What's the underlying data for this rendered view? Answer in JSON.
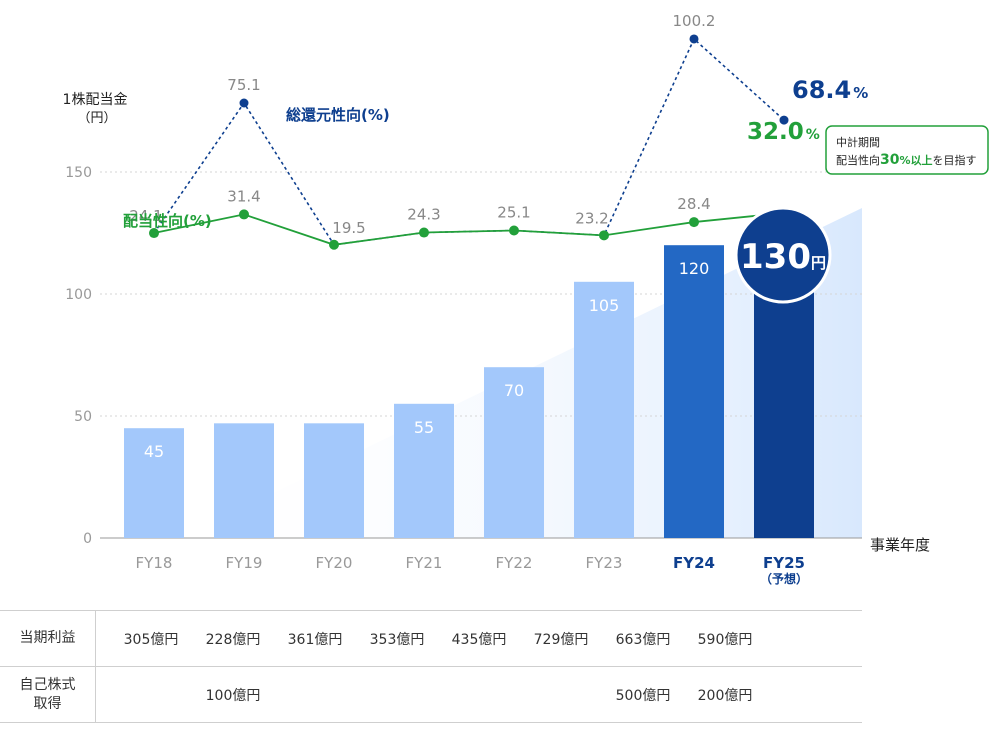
{
  "chart_data": {
    "type": "bar",
    "ylabel_line1": "1株配当金",
    "ylabel_line2": "（円）",
    "xlabel": "事業年度",
    "categories": [
      "FY18",
      "FY19",
      "FY20",
      "FY21",
      "FY22",
      "FY23",
      "FY24",
      "FY25"
    ],
    "forecast_note": "（予想）",
    "ylim": [
      0,
      150
    ],
    "yticks": [
      0,
      50,
      100,
      150
    ],
    "values": [
      45,
      47,
      47,
      55,
      70,
      105,
      120,
      130
    ],
    "value_labels": [
      "45",
      "",
      "",
      "55",
      "70",
      "105",
      "120",
      ""
    ],
    "highlight_value": "130",
    "highlight_unit": "円",
    "lines": [
      {
        "name": "総還元性向(%)",
        "values": [
          24.1,
          75.1,
          19.5,
          24.3,
          25.1,
          23.2,
          100.2,
          68.4
        ],
        "labels": [
          "",
          "75.1",
          "",
          "",
          "",
          "",
          "100.2",
          ""
        ],
        "last_label": "68.4",
        "last_unit": "%",
        "style": "dotted",
        "color": "#0e3f8f"
      },
      {
        "name": "配当性向(%)",
        "values": [
          24.1,
          31.4,
          19.5,
          24.3,
          25.1,
          23.2,
          28.4,
          32.0
        ],
        "labels": [
          "24.1",
          "31.4",
          "19.5",
          "24.3",
          "25.1",
          "23.2",
          "28.4",
          ""
        ],
        "last_label": "32.0",
        "last_unit": "%",
        "style": "solid",
        "color": "#22a03a"
      }
    ],
    "annotation": {
      "line1": "中計期間",
      "line2_prefix": "配当性向",
      "line2_big": "30",
      "line2_mid": "%以上",
      "line2_suffix": "を目指す"
    }
  },
  "table": {
    "rows": [
      {
        "label_lines": [
          "当期利益"
        ],
        "values": [
          "305億円",
          "228億円",
          "361億円",
          "353億円",
          "435億円",
          "729億円",
          "663億円",
          "590億円"
        ]
      },
      {
        "label_lines": [
          "自己株式",
          "取得"
        ],
        "values": [
          "",
          "100億円",
          "",
          "",
          "",
          "",
          "500億円",
          "200億円"
        ]
      }
    ]
  },
  "colors": {
    "bar_light": "#a3c8fb",
    "bar_fy24": "#2368c4",
    "bar_fy25": "#0e3f8f",
    "payout_line": "#22a03a",
    "total_return_line": "#0e3f8f",
    "wedge": "#d8e8fd",
    "grid": "#d5d5d5",
    "axis_text": "#999999"
  }
}
